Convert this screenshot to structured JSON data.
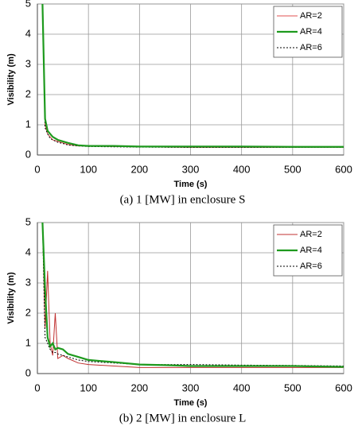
{
  "chart_data": [
    {
      "type": "line",
      "title": "(a) 1 [MW] in enclosure S",
      "x_label": "Time (s)",
      "y_label": "Visibility (m)",
      "x": [
        10,
        15,
        20,
        25,
        30,
        40,
        50,
        60,
        80,
        100,
        150,
        200,
        300,
        400,
        500,
        600
      ],
      "series": [
        {
          "name": "AR=2",
          "color": "#e05050",
          "values": [
            5,
            1.0,
            0.7,
            0.6,
            0.5,
            0.45,
            0.4,
            0.35,
            0.3,
            0.3,
            0.28,
            0.27,
            0.25,
            0.25,
            0.25,
            0.25
          ]
        },
        {
          "name": "AR=4",
          "color": "#1e9a1e",
          "values": [
            5,
            1.2,
            0.8,
            0.7,
            0.6,
            0.5,
            0.45,
            0.4,
            0.32,
            0.3,
            0.3,
            0.28,
            0.28,
            0.28,
            0.27,
            0.27
          ]
        },
        {
          "name": "AR=6",
          "color": "#000000",
          "values": [
            5,
            0.9,
            0.7,
            0.55,
            0.5,
            0.42,
            0.38,
            0.33,
            0.3,
            0.28,
            0.27,
            0.26,
            0.25,
            0.25,
            0.25,
            0.25
          ]
        }
      ],
      "xlim": [
        0,
        600
      ],
      "xticks": [
        0,
        100,
        200,
        300,
        400,
        500,
        600
      ],
      "ylim": [
        0,
        5
      ],
      "yticks": [
        0,
        1,
        2,
        3,
        4,
        5
      ],
      "grid": true,
      "legend": "upper right"
    },
    {
      "type": "line",
      "title": "(b) 2 [MW] in enclosure L",
      "x_label": "Time (s)",
      "y_label": "Visibility (m)",
      "x": [
        10,
        15,
        20,
        25,
        30,
        35,
        40,
        50,
        60,
        80,
        100,
        150,
        200,
        250,
        300,
        400,
        500,
        600
      ],
      "series": [
        {
          "name": "AR=2",
          "color": "#c03030",
          "values": [
            5,
            1.5,
            3.4,
            1.0,
            0.6,
            2.0,
            0.5,
            0.6,
            0.5,
            0.35,
            0.3,
            0.25,
            0.2,
            0.2,
            0.2,
            0.2,
            0.2,
            0.2
          ]
        },
        {
          "name": "AR=4",
          "color": "#1e9a1e",
          "values": [
            5,
            2.8,
            1.2,
            0.9,
            1.0,
            0.8,
            0.85,
            0.8,
            0.65,
            0.55,
            0.45,
            0.38,
            0.3,
            0.28,
            0.25,
            0.25,
            0.25,
            0.22
          ]
        },
        {
          "name": "AR=6",
          "color": "#000000",
          "values": [
            5,
            1.2,
            1.0,
            0.8,
            0.7,
            0.7,
            0.65,
            0.6,
            0.55,
            0.45,
            0.4,
            0.35,
            0.3,
            0.3,
            0.3,
            0.28,
            0.27,
            0.25
          ]
        }
      ],
      "xlim": [
        0,
        600
      ],
      "xticks": [
        0,
        100,
        200,
        300,
        400,
        500,
        600
      ],
      "ylim": [
        0,
        5
      ],
      "yticks": [
        0,
        1,
        2,
        3,
        4,
        5
      ],
      "grid": true,
      "legend": "upper right"
    }
  ]
}
